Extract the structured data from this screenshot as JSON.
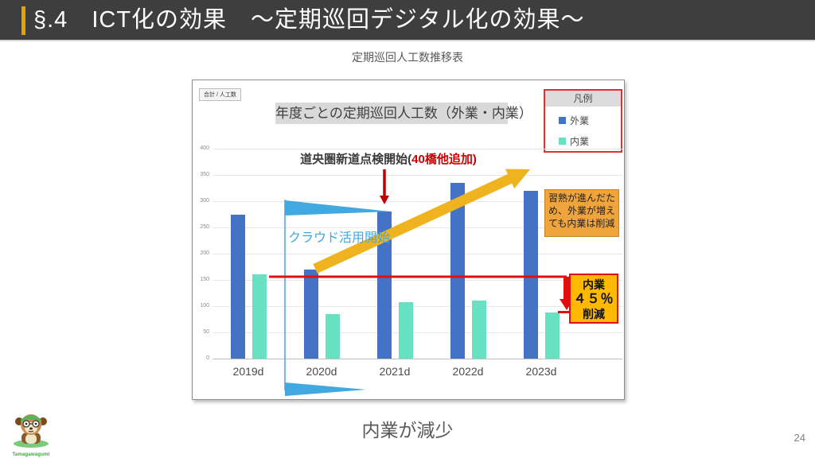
{
  "header": {
    "title": "§.4　ICT化の効果　～定期巡回デジタル化の効果～"
  },
  "subtitle": "定期巡回人工数推移表",
  "chart": {
    "corner_label": "合計 / 人工数",
    "legend_title": "凡例",
    "annotation_top_black": "道央圏新道点検開始(",
    "annotation_top_red": "40橋他追加)",
    "cloud_label": "クラウド活用開始",
    "note_text": "習熟が進んだため、外業が増えても内業は削減",
    "reduction_line1": "内業",
    "reduction_line2": "４５％",
    "reduction_line3": "削減"
  },
  "chart_data": {
    "type": "bar",
    "title": "年度ごとの定期巡回人工数（外業・内業）",
    "categories": [
      "2019d",
      "2020d",
      "2021d",
      "2022d",
      "2023d"
    ],
    "series": [
      {
        "name": "外業",
        "color": "#4472C4",
        "values": [
          275,
          170,
          280,
          335,
          320
        ]
      },
      {
        "name": "内業",
        "color": "#66E2C2",
        "values": [
          160,
          85,
          108,
          110,
          88
        ]
      }
    ],
    "ylim": [
      0,
      400
    ],
    "ytick_step": 50,
    "grid": true,
    "legend_position": "top-right",
    "annotations": [
      {
        "text": "道央圏新道点検開始(40橋他追加)",
        "target": "2021d"
      },
      {
        "text": "クラウド活用開始",
        "target": "2019d〜2020dの間"
      },
      {
        "text": "習熟が進んだため、外業が増えても内業は削減"
      },
      {
        "text": "内業４５％削減",
        "target": "2023d 内業"
      },
      {
        "text": "2019d内業水準の赤基準線",
        "value": 160
      }
    ]
  },
  "footer": {
    "caption": "内業が減少",
    "page_number": "24",
    "logo_text": "Tamagawagumi"
  },
  "colors": {
    "header_bg": "#3E3E3E",
    "header_accent": "#E8A200",
    "series_exterior_blue": "#4472C4",
    "series_interior_mint": "#66E2C2",
    "red_line": "#E01010",
    "dark_red": "#C00000",
    "gold_arrow": "#EFB320",
    "cyan_flag": "#41A8E0",
    "note_box_bg": "#F0A43C",
    "reduction_box_bg": "#FFB900"
  }
}
